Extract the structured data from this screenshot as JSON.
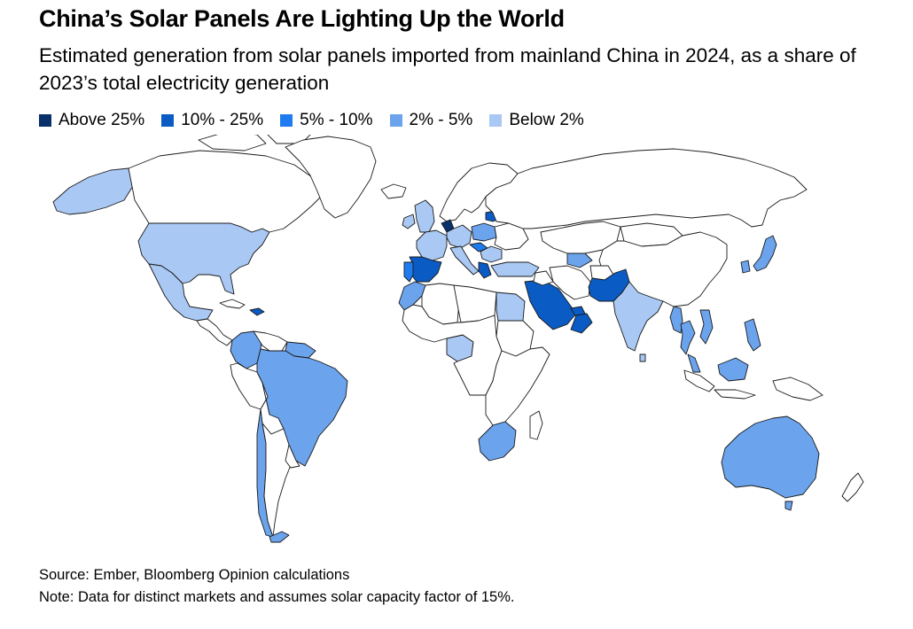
{
  "header": {
    "title": "China’s Solar Panels Are Lighting Up the World",
    "subtitle": "Estimated generation from solar panels imported from mainland China in 2024, as a share of 2023’s total electricity generation"
  },
  "legend": {
    "items": [
      {
        "label": "Above 25%",
        "color": "#08306b"
      },
      {
        "label": "10% - 25%",
        "color": "#0b5bc4"
      },
      {
        "label": "5% - 10%",
        "color": "#1f7cf0"
      },
      {
        "label": "2% - 5%",
        "color": "#6ba3ec"
      },
      {
        "label": "Below 2%",
        "color": "#a9c8f3"
      }
    ]
  },
  "map": {
    "no_data_color": "#ffffff",
    "border_color": "#1a1a1a",
    "countries": [
      {
        "name": "Alaska",
        "bucket": "Below 2%"
      },
      {
        "name": "United States",
        "bucket": "Below 2%"
      },
      {
        "name": "Canada",
        "bucket": null
      },
      {
        "name": "Greenland",
        "bucket": null
      },
      {
        "name": "Mexico",
        "bucket": "Below 2%"
      },
      {
        "name": "Central America",
        "bucket": null
      },
      {
        "name": "Cuba",
        "bucket": null
      },
      {
        "name": "Dominican Republic",
        "bucket": "10% - 25%"
      },
      {
        "name": "Colombia",
        "bucket": "2% - 5%"
      },
      {
        "name": "Venezuela",
        "bucket": null
      },
      {
        "name": "Suriname",
        "bucket": "2% - 5%"
      },
      {
        "name": "Peru",
        "bucket": null
      },
      {
        "name": "Brazil",
        "bucket": "2% - 5%"
      },
      {
        "name": "Bolivia",
        "bucket": null
      },
      {
        "name": "Chile",
        "bucket": "2% - 5%"
      },
      {
        "name": "Argentina",
        "bucket": null
      },
      {
        "name": "Uruguay",
        "bucket": null
      },
      {
        "name": "Tierra del Fuego",
        "bucket": "2% - 5%"
      },
      {
        "name": "Iceland",
        "bucket": null
      },
      {
        "name": "United Kingdom",
        "bucket": "Below 2%"
      },
      {
        "name": "Ireland",
        "bucket": "Below 2%"
      },
      {
        "name": "Scandinavia",
        "bucket": null
      },
      {
        "name": "France",
        "bucket": "Below 2%"
      },
      {
        "name": "Spain",
        "bucket": "10% - 25%"
      },
      {
        "name": "Portugal",
        "bucket": "5% - 10%"
      },
      {
        "name": "Netherlands",
        "bucket": "Above 25%"
      },
      {
        "name": "Germany",
        "bucket": "Below 2%"
      },
      {
        "name": "Poland",
        "bucket": "2% - 5%"
      },
      {
        "name": "Lithuania",
        "bucket": "10% - 25%"
      },
      {
        "name": "Italy",
        "bucket": "Below 2%"
      },
      {
        "name": "Hungary",
        "bucket": "5% - 10%"
      },
      {
        "name": "Romania",
        "bucket": "Below 2%"
      },
      {
        "name": "Greece",
        "bucket": "10% - 25%"
      },
      {
        "name": "Turkey",
        "bucket": "Below 2%"
      },
      {
        "name": "Ukraine",
        "bucket": null
      },
      {
        "name": "Russia",
        "bucket": null
      },
      {
        "name": "Kazakhstan",
        "bucket": null
      },
      {
        "name": "Uzbekistan",
        "bucket": "2% - 5%"
      },
      {
        "name": "Mongolia",
        "bucket": null
      },
      {
        "name": "China",
        "bucket": null
      },
      {
        "name": "South Korea",
        "bucket": "2% - 5%"
      },
      {
        "name": "Japan",
        "bucket": "2% - 5%"
      },
      {
        "name": "Morocco",
        "bucket": "2% - 5%"
      },
      {
        "name": "Algeria",
        "bucket": null
      },
      {
        "name": "Libya",
        "bucket": null
      },
      {
        "name": "Egypt",
        "bucket": "Below 2%"
      },
      {
        "name": "Sudan",
        "bucket": null
      },
      {
        "name": "Nigeria",
        "bucket": "Below 2%"
      },
      {
        "name": "Central Africa",
        "bucket": null
      },
      {
        "name": "East Africa",
        "bucket": null
      },
      {
        "name": "South Africa",
        "bucket": "2% - 5%"
      },
      {
        "name": "Madagascar",
        "bucket": null
      },
      {
        "name": "Saudi Arabia",
        "bucket": "10% - 25%"
      },
      {
        "name": "United Arab Emirates",
        "bucket": "10% - 25%"
      },
      {
        "name": "Oman",
        "bucket": "10% - 25%"
      },
      {
        "name": "Iraq",
        "bucket": null
      },
      {
        "name": "Iran",
        "bucket": null
      },
      {
        "name": "Afghanistan",
        "bucket": null
      },
      {
        "name": "Pakistan",
        "bucket": "10% - 25%"
      },
      {
        "name": "India",
        "bucket": "Below 2%"
      },
      {
        "name": "Sri Lanka",
        "bucket": "Below 2%"
      },
      {
        "name": "Myanmar",
        "bucket": "2% - 5%"
      },
      {
        "name": "Thailand",
        "bucket": "2% - 5%"
      },
      {
        "name": "Vietnam",
        "bucket": "2% - 5%"
      },
      {
        "name": "Malaysia",
        "bucket": "2% - 5%"
      },
      {
        "name": "Indonesia",
        "bucket": null
      },
      {
        "name": "Borneo",
        "bucket": "2% - 5%"
      },
      {
        "name": "Philippines",
        "bucket": "2% - 5%"
      },
      {
        "name": "New Guinea",
        "bucket": null
      },
      {
        "name": "Australia",
        "bucket": "2% - 5%"
      },
      {
        "name": "Tasmania",
        "bucket": "2% - 5%"
      },
      {
        "name": "New Zealand",
        "bucket": null
      }
    ]
  },
  "footer": {
    "source": "Source: Ember, Bloomberg Opinion calculations",
    "note": "Note: Data for distinct markets and assumes solar capacity factor of 15%."
  }
}
